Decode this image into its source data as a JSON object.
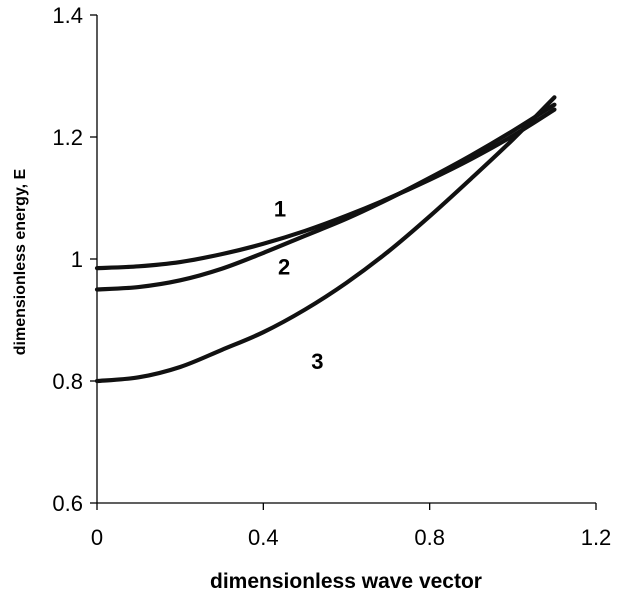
{
  "chart_data": {
    "type": "line",
    "title": "",
    "xlabel": "dimensionless wave vector",
    "ylabel": "dimensionless energy, E",
    "xlim": [
      0,
      1.2
    ],
    "ylim": [
      0.6,
      1.4
    ],
    "xticks": [
      "0",
      "0.4",
      "0.8",
      "1.2"
    ],
    "yticks": [
      "0.6",
      "0.8",
      "1",
      "1.2",
      "1.4"
    ],
    "grid": false,
    "series": [
      {
        "name": "1",
        "x": [
          0,
          0.1,
          0.2,
          0.3,
          0.4,
          0.5,
          0.6,
          0.7,
          0.8,
          0.9,
          1.0,
          1.1
        ],
        "y": [
          0.985,
          0.988,
          0.995,
          1.008,
          1.025,
          1.046,
          1.071,
          1.099,
          1.13,
          1.164,
          1.202,
          1.245
        ]
      },
      {
        "name": "2",
        "x": [
          0,
          0.1,
          0.2,
          0.3,
          0.4,
          0.5,
          0.6,
          0.7,
          0.8,
          0.9,
          1.0,
          1.1
        ],
        "y": [
          0.95,
          0.954,
          0.965,
          0.984,
          1.01,
          1.038,
          1.066,
          1.098,
          1.133,
          1.17,
          1.21,
          1.253
        ]
      },
      {
        "name": "3",
        "x": [
          0,
          0.1,
          0.2,
          0.3,
          0.4,
          0.5,
          0.6,
          0.7,
          0.8,
          0.9,
          1.0,
          1.1
        ],
        "y": [
          0.8,
          0.806,
          0.823,
          0.851,
          0.88,
          0.917,
          0.961,
          1.012,
          1.07,
          1.132,
          1.196,
          1.265
        ]
      }
    ]
  }
}
